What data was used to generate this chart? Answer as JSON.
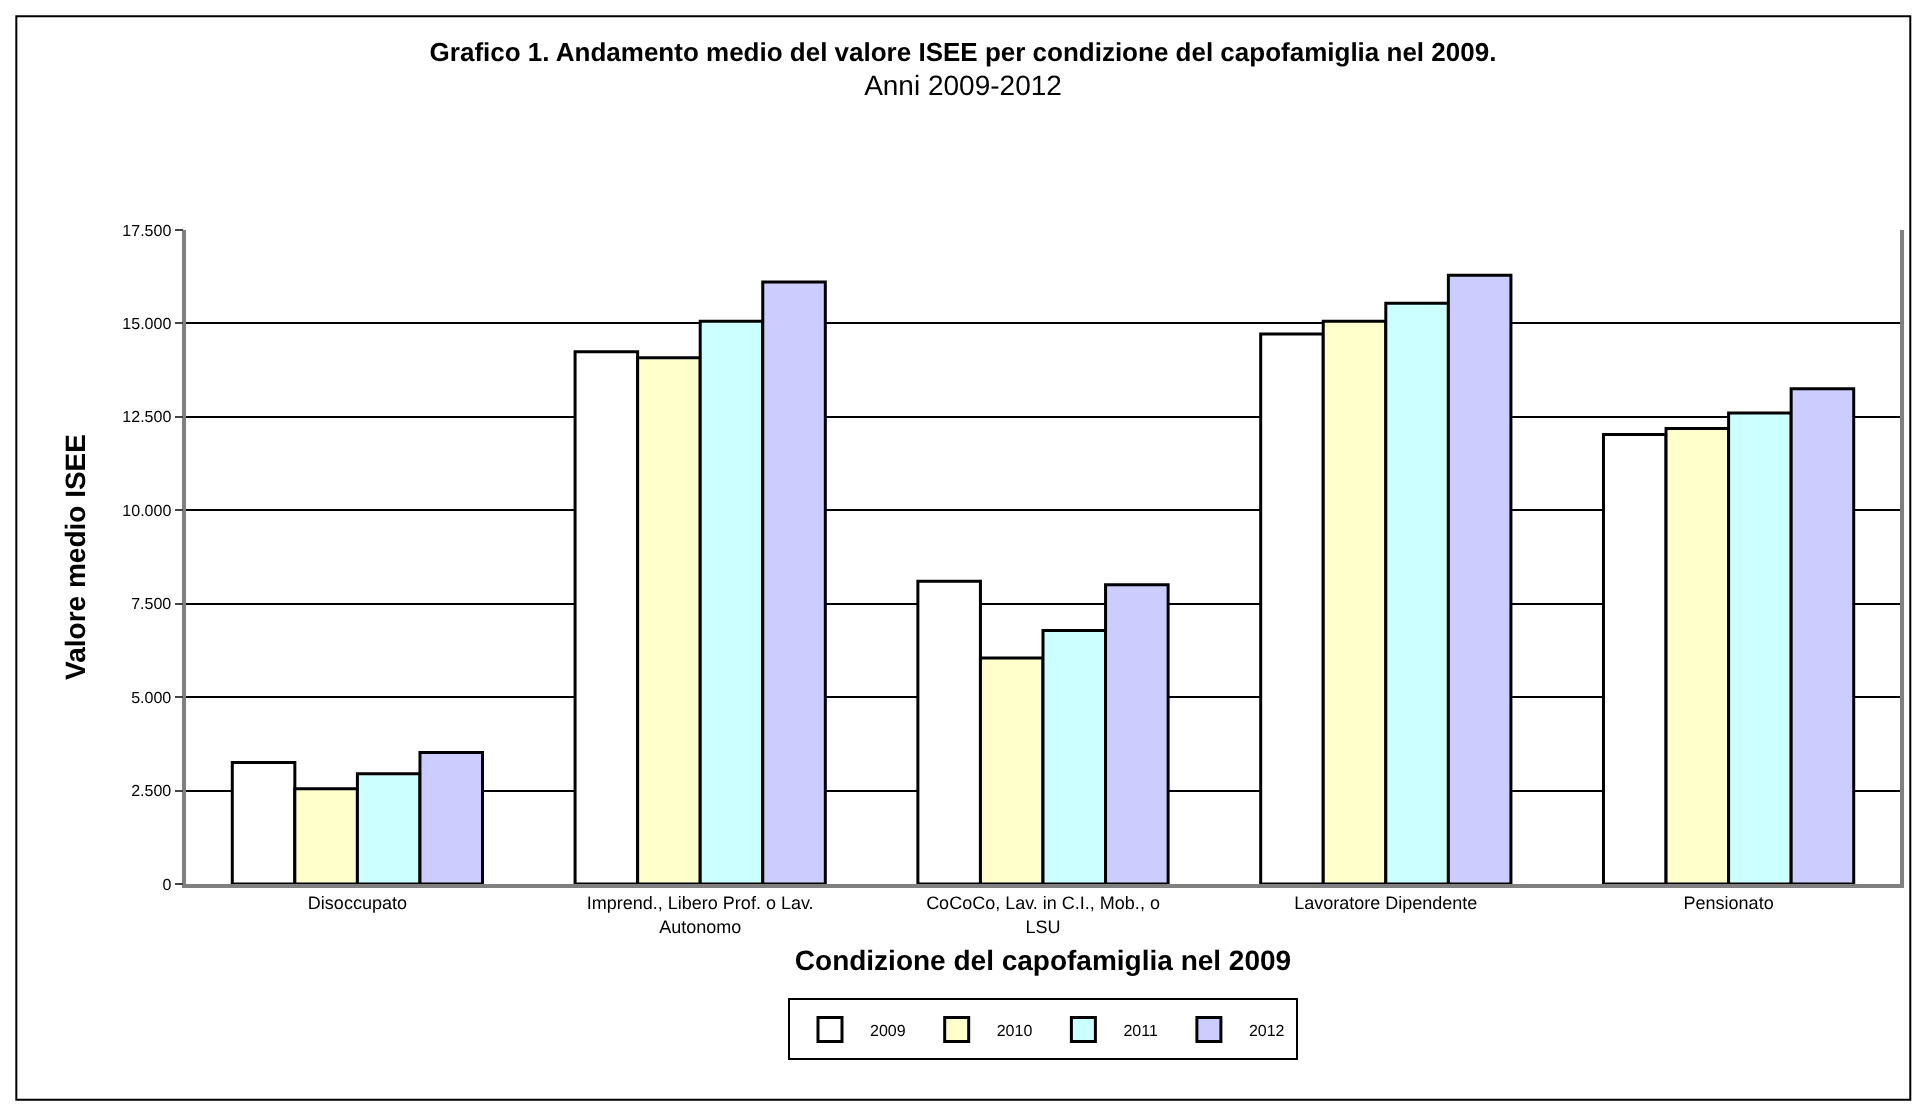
{
  "chart_data": {
    "type": "bar",
    "title": "Grafico 1. Andamento medio del valore ISEE per condizione del capofamiglia nel 2009.",
    "subtitle": "Anni 2009-2012",
    "xlabel": "Condizione del capofamiglia nel 2009",
    "ylabel": "Valore medio ISEE",
    "categories": [
      "Disoccupato",
      "Imprend., Libero Prof. o Lav. Autonomo",
      "CoCoCo, Lav. in C.I., Mob., o LSU",
      "Lavoratore Dipendente",
      "Pensionato"
    ],
    "series": [
      {
        "name": "2009",
        "color": "#ffffff",
        "values": [
          3250,
          14240,
          8100,
          14720,
          12030
        ]
      },
      {
        "name": "2010",
        "color": "#ffffcc",
        "values": [
          2550,
          14080,
          6050,
          15060,
          12190
        ]
      },
      {
        "name": "2011",
        "color": "#ccffff",
        "values": [
          2950,
          15060,
          6780,
          15540,
          12600
        ]
      },
      {
        "name": "2012",
        "color": "#ccccff",
        "values": [
          3520,
          16110,
          8010,
          16290,
          13250
        ]
      }
    ],
    "ylim": [
      0,
      17500
    ],
    "yticks": [
      0,
      {
        "value": 2500,
        "label": "2.500"
      },
      {
        "value": 5000,
        "label": "5.000"
      },
      {
        "value": 7500,
        "label": "7.500"
      },
      {
        "value": 10000,
        "label": "10.000"
      },
      {
        "value": 12500,
        "label": "12.500"
      },
      {
        "value": 15000,
        "label": "15.000"
      },
      {
        "value": 17500,
        "label": "17.500"
      }
    ],
    "grid": "y",
    "legend": "bottom"
  }
}
